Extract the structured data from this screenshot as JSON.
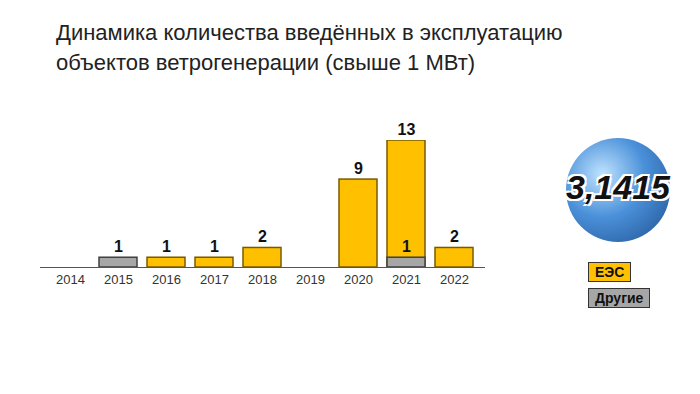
{
  "chart_data": {
    "type": "bar",
    "title": "Динамика количества введённых в эксплуатацию объектов ветрогенерации (свыше 1 МВт)",
    "categories": [
      "2014",
      "2015",
      "2016",
      "2017",
      "2018",
      "2019",
      "2020",
      "2021",
      "2022"
    ],
    "series": [
      {
        "name": "ЕЭС",
        "color": "#ffc000",
        "values": [
          0,
          0,
          1,
          1,
          2,
          0,
          9,
          13,
          2
        ]
      },
      {
        "name": "Другие",
        "color": "#a6a6a6",
        "values": [
          0,
          1,
          0,
          0,
          0,
          0,
          0,
          1,
          0
        ]
      }
    ],
    "ylim": [
      0,
      13
    ],
    "yticks": [],
    "stacked": false,
    "data_labels": true,
    "tick_labels": "x",
    "legend": "bottom-right",
    "annotations": [
      "3,1415"
    ]
  }
}
